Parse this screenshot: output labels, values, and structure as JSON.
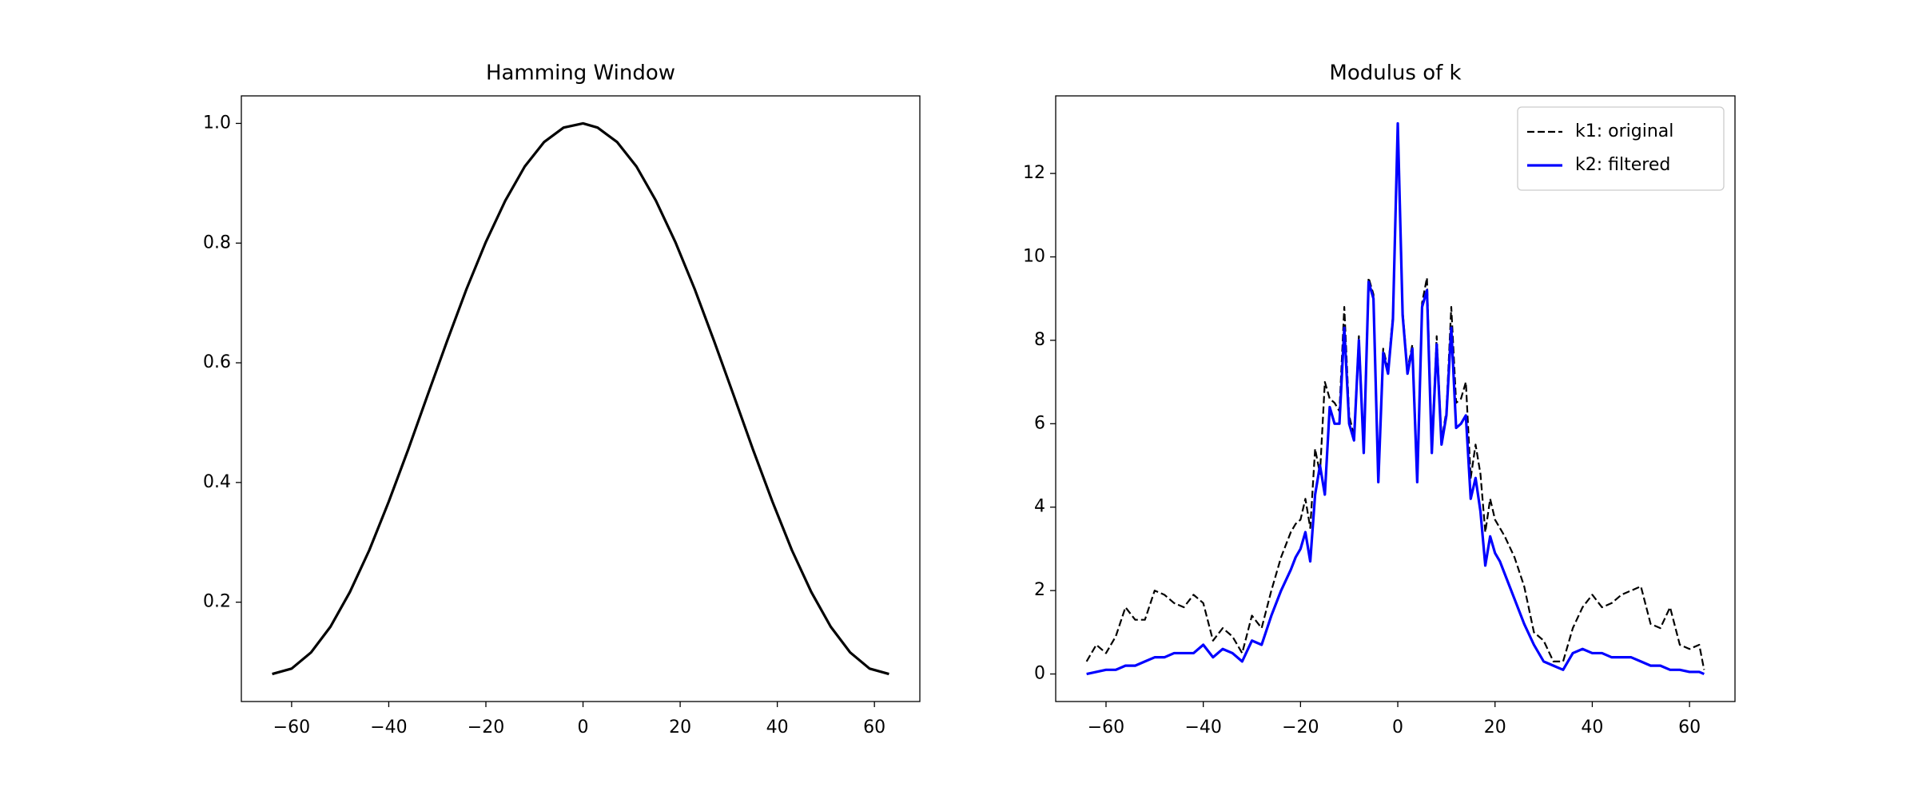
{
  "chart_data": [
    {
      "type": "line",
      "title": "Hamming Window",
      "x": [
        -64,
        -60,
        -56,
        -52,
        -48,
        -44,
        -40,
        -36,
        -32,
        -28,
        -24,
        -20,
        -16,
        -12,
        -8,
        -4,
        0,
        3,
        7,
        11,
        15,
        19,
        23,
        27,
        31,
        35,
        39,
        43,
        47,
        51,
        55,
        59,
        63
      ],
      "series": [
        {
          "color": "#000000",
          "linestyle": "solid",
          "values": [
            0.08,
            0.089,
            0.116,
            0.159,
            0.217,
            0.287,
            0.368,
            0.455,
            0.546,
            0.636,
            0.723,
            0.802,
            0.871,
            0.928,
            0.969,
            0.993,
            1.0,
            0.993,
            0.969,
            0.928,
            0.871,
            0.802,
            0.723,
            0.636,
            0.546,
            0.455,
            0.368,
            0.287,
            0.217,
            0.159,
            0.116,
            0.089,
            0.08
          ]
        }
      ],
      "xlim": [
        -70.35,
        69.35
      ],
      "xticks": [
        {
          "value": -60,
          "label": "−60"
        },
        {
          "value": -40,
          "label": "−40"
        },
        {
          "value": -20,
          "label": "−20"
        },
        0,
        20,
        40,
        60
      ],
      "ylim": [
        0.034,
        1.046
      ],
      "yticks": [
        0.2,
        0.4,
        0.6,
        0.8,
        {
          "value": 1,
          "label": "1.0"
        }
      ]
    },
    {
      "type": "line",
      "title": "Modulus of k",
      "x": [
        -64,
        -62,
        -60,
        -58,
        -56,
        -54,
        -52,
        -50,
        -48,
        -46,
        -44,
        -42,
        -40,
        -38,
        -36,
        -34,
        -32,
        -30,
        -28,
        -26,
        -24,
        -22,
        -21,
        -20,
        -19,
        -18,
        -17,
        -16,
        -15,
        -14,
        -13,
        -12,
        -11,
        -10,
        -9,
        -8,
        -7,
        -6,
        -5,
        -4,
        -3,
        -2,
        -1,
        0,
        1,
        2,
        3,
        4,
        5,
        6,
        7,
        8,
        9,
        10,
        11,
        12,
        13,
        14,
        15,
        16,
        17,
        18,
        19,
        20,
        21,
        22,
        24,
        26,
        28,
        30,
        32,
        34,
        36,
        38,
        40,
        42,
        44,
        46,
        48,
        50,
        52,
        54,
        56,
        58,
        60,
        62,
        63
      ],
      "series": [
        {
          "name": "k1: original",
          "color": "#000000",
          "linestyle": "dashed",
          "values": [
            0.3,
            0.7,
            0.5,
            0.9,
            1.6,
            1.3,
            1.3,
            2.0,
            1.9,
            1.7,
            1.6,
            1.9,
            1.7,
            0.8,
            1.1,
            0.9,
            0.5,
            1.4,
            1.1,
            2.0,
            2.8,
            3.4,
            3.6,
            3.7,
            4.2,
            3.5,
            5.4,
            4.8,
            7.0,
            6.6,
            6.5,
            6.3,
            8.8,
            6.2,
            5.7,
            8.1,
            5.4,
            9.5,
            9.1,
            4.7,
            7.8,
            7.3,
            8.6,
            13.1,
            8.7,
            7.3,
            7.9,
            4.7,
            8.9,
            9.5,
            5.4,
            8.1,
            5.6,
            6.3,
            8.8,
            6.5,
            6.6,
            7.0,
            4.7,
            5.5,
            4.8,
            3.4,
            4.2,
            3.7,
            3.5,
            3.3,
            2.8,
            2.1,
            1.0,
            0.8,
            0.3,
            0.3,
            1.1,
            1.6,
            1.9,
            1.6,
            1.7,
            1.9,
            2.0,
            2.1,
            1.2,
            1.1,
            1.6,
            0.7,
            0.6,
            0.7,
            0.1
          ]
        },
        {
          "name": "k2: filtered",
          "color": "#0000ff",
          "linestyle": "solid",
          "values": [
            0.0,
            0.05,
            0.1,
            0.1,
            0.2,
            0.2,
            0.3,
            0.4,
            0.4,
            0.5,
            0.5,
            0.5,
            0.7,
            0.4,
            0.6,
            0.5,
            0.3,
            0.8,
            0.7,
            1.4,
            2.0,
            2.5,
            2.8,
            3.0,
            3.4,
            2.7,
            4.3,
            5.0,
            4.3,
            6.4,
            6.0,
            6.0,
            8.3,
            6.0,
            5.6,
            8.0,
            5.3,
            9.4,
            9.0,
            4.6,
            7.7,
            7.2,
            8.5,
            13.2,
            8.6,
            7.2,
            7.8,
            4.6,
            8.8,
            9.2,
            5.3,
            7.9,
            5.5,
            6.2,
            8.3,
            5.9,
            6.0,
            6.2,
            4.2,
            4.7,
            3.9,
            2.6,
            3.3,
            2.9,
            2.7,
            2.4,
            1.8,
            1.2,
            0.7,
            0.3,
            0.2,
            0.1,
            0.5,
            0.6,
            0.5,
            0.5,
            0.4,
            0.4,
            0.4,
            0.3,
            0.2,
            0.2,
            0.1,
            0.1,
            0.05,
            0.05,
            0.0
          ]
        }
      ],
      "legend": "upper right",
      "xlim": [
        -70.35,
        69.35
      ],
      "xticks": [
        {
          "value": -60,
          "label": "−60"
        },
        {
          "value": -40,
          "label": "−40"
        },
        {
          "value": -20,
          "label": "−20"
        },
        0,
        20,
        40,
        60
      ],
      "ylim": [
        -0.66,
        13.86
      ],
      "yticks": [
        0,
        2,
        4,
        6,
        8,
        10,
        12
      ]
    }
  ]
}
